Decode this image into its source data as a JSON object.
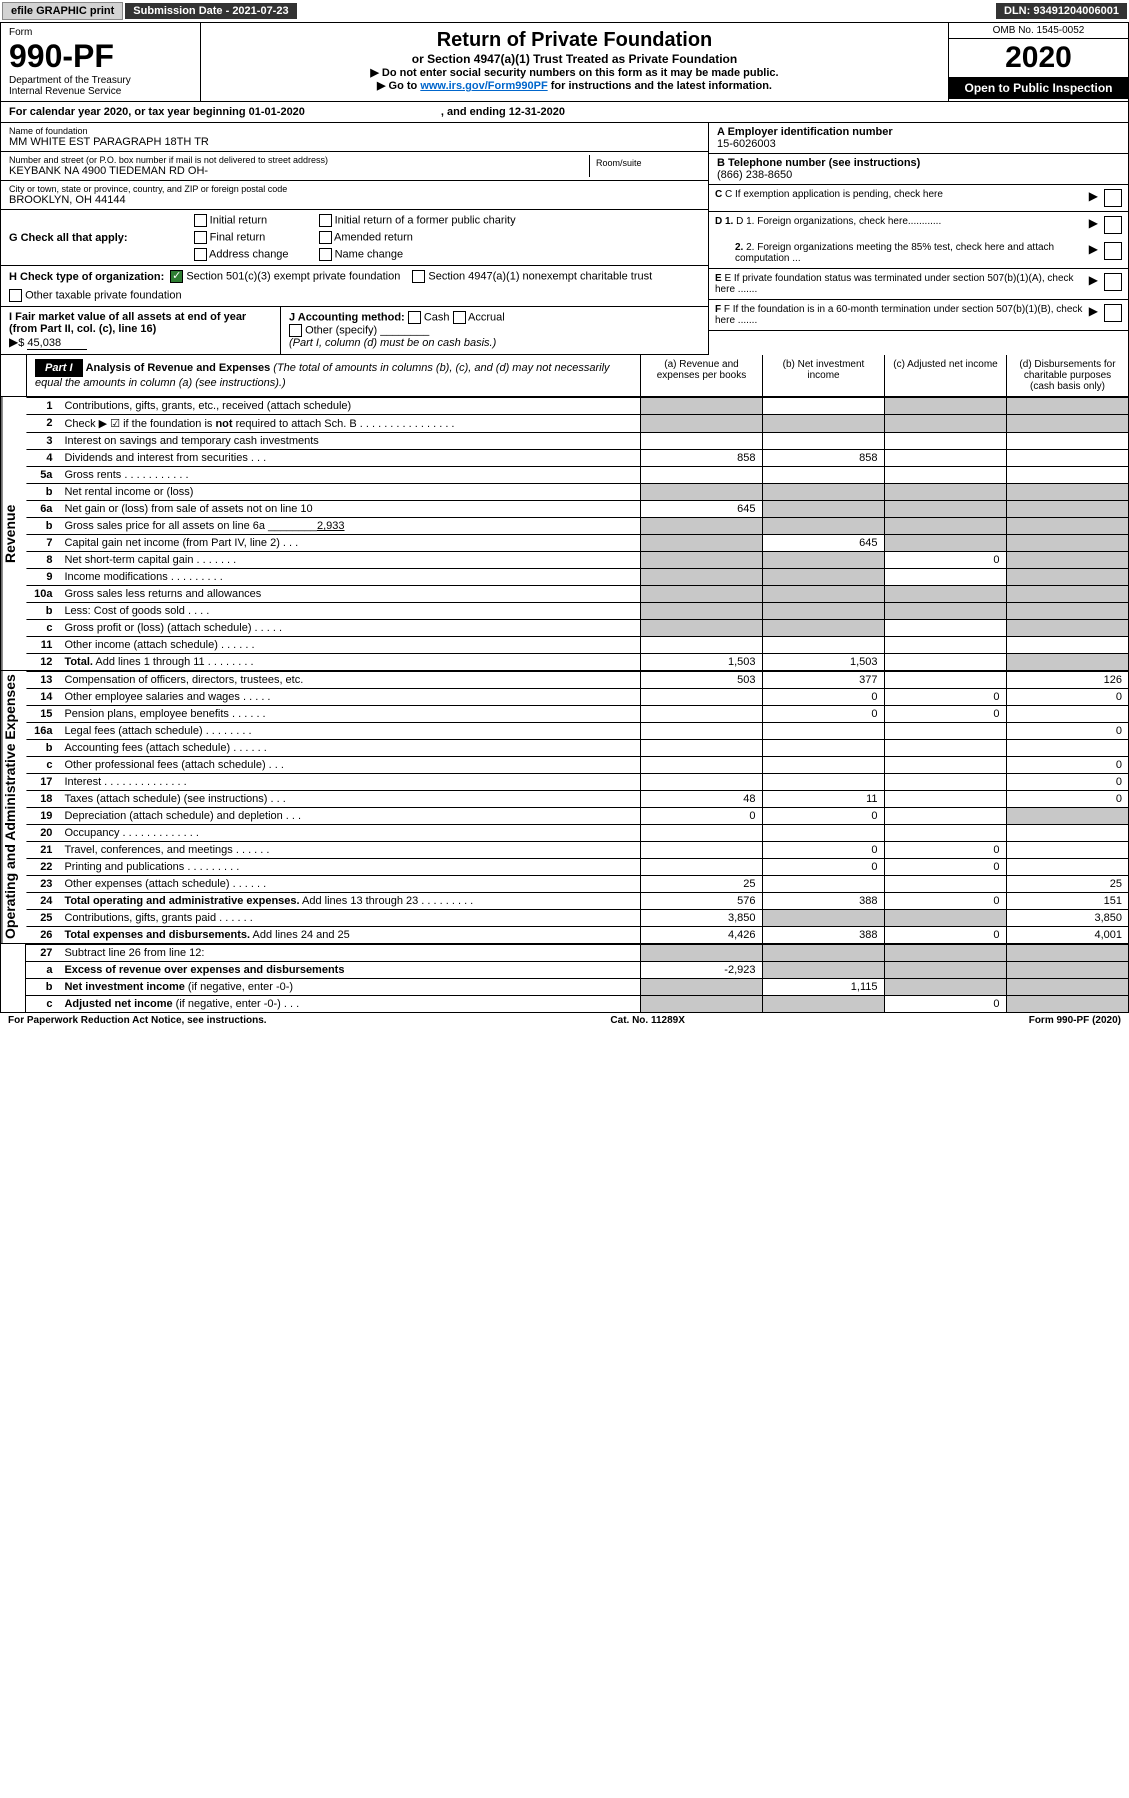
{
  "topbar": {
    "efile": "efile GRAPHIC print",
    "sub_label": "Submission Date - 2021-07-23",
    "dln": "DLN: 93491204006001"
  },
  "header": {
    "form": "Form",
    "num": "990-PF",
    "dept": "Department of the Treasury\nInternal Revenue Service",
    "title": "Return of Private Foundation",
    "subtitle": "or Section 4947(a)(1) Trust Treated as Private Foundation",
    "instr1": "▶ Do not enter social security numbers on this form as it may be made public.",
    "instr2_pre": "▶ Go to ",
    "instr2_link": "www.irs.gov/Form990PF",
    "instr2_post": " for instructions and the latest information.",
    "omb": "OMB No. 1545-0052",
    "year": "2020",
    "open": "Open to Public Inspection"
  },
  "cy": "For calendar year 2020, or tax year beginning 01-01-2020",
  "cy_end": ", and ending 12-31-2020",
  "name": {
    "lbl": "Name of foundation",
    "val": "MM WHITE EST PARAGRAPH 18TH TR"
  },
  "addr": {
    "lbl": "Number and street (or P.O. box number if mail is not delivered to street address)",
    "val": "KEYBANK NA 4900 TIEDEMAN RD OH-",
    "room": "Room/suite"
  },
  "city": {
    "lbl": "City or town, state or province, country, and ZIP or foreign postal code",
    "val": "BROOKLYN, OH  44144"
  },
  "ein": {
    "lbl": "A Employer identification number",
    "val": "15-6026003"
  },
  "tel": {
    "lbl": "B Telephone number (see instructions)",
    "val": "(866) 238-8650"
  },
  "c": "C If exemption application is pending, check here",
  "d1": "D 1. Foreign organizations, check here............",
  "d2": "2. Foreign organizations meeting the 85% test, check here and attach computation ...",
  "e": "E  If private foundation status was terminated under section 507(b)(1)(A), check here .......",
  "f": "F  If the foundation is in a 60-month termination under section 507(b)(1)(B), check here .......",
  "g": {
    "lbl": "G Check all that apply:",
    "opts": [
      "Initial return",
      "Final return",
      "Address change",
      "Initial return of a former public charity",
      "Amended return",
      "Name change"
    ]
  },
  "h": {
    "lbl": "H Check type of organization:",
    "o1": "Section 501(c)(3) exempt private foundation",
    "o2": "Section 4947(a)(1) nonexempt charitable trust",
    "o3": "Other taxable private foundation"
  },
  "i": {
    "lbl": "I Fair market value of all assets at end of year (from Part II, col. (c), line 16)",
    "amt": "45,038"
  },
  "j": {
    "lbl": "J Accounting method:",
    "cash": "Cash",
    "accrual": "Accrual",
    "other": "Other (specify)",
    "note": "(Part I, column (d) must be on cash basis.)"
  },
  "part1": {
    "hdr": "Part I",
    "title": "Analysis of Revenue and Expenses",
    "sub": " (The total of amounts in columns (b), (c), and (d) may not necessarily equal the amounts in column (a) (see instructions).)",
    "ca": "(a)   Revenue and expenses per books",
    "cb": "(b)   Net investment income",
    "cc": "(c)   Adjusted net income",
    "cd": "(d)  Disbursements for charitable purposes (cash basis only)"
  },
  "rev_label": "Revenue",
  "exp_label": "Operating and Administrative Expenses",
  "rows": [
    {
      "n": "1",
      "d": "Contributions, gifts, grants, etc., received (attach schedule)",
      "a": "",
      "b": "",
      "c": "",
      "dd": "",
      "ga": true,
      "gc": true,
      "gd": true
    },
    {
      "n": "2",
      "d": "Check ▶ ☑ if the foundation is <b>not</b> required to attach Sch. B   .   .   .   .   .   .   .   .   .   .   .   .   .   .   .   .",
      "ga": true,
      "gb": true,
      "gc": true,
      "gd": true
    },
    {
      "n": "3",
      "d": "Interest on savings and temporary cash investments"
    },
    {
      "n": "4",
      "d": "Dividends and interest from securities   .   .   .",
      "a": "858",
      "b": "858"
    },
    {
      "n": "5a",
      "d": "Gross rents   .   .   .   .   .   .   .   .   .   .   ."
    },
    {
      "n": "b",
      "d": "Net rental income or (loss)  ",
      "ga": true,
      "gb": true,
      "gc": true,
      "gd": true
    },
    {
      "n": "6a",
      "d": "Net gain or (loss) from sale of assets not on line 10",
      "a": "645",
      "gb": true,
      "gc": true,
      "gd": true
    },
    {
      "n": "b",
      "d": "Gross sales price for all assets on line 6a ________<u>2,933</u>",
      "ga": true,
      "gb": true,
      "gc": true,
      "gd": true
    },
    {
      "n": "7",
      "d": "Capital gain net income (from Part IV, line 2)   .   .   .",
      "b": "645",
      "ga": true,
      "gc": true,
      "gd": true
    },
    {
      "n": "8",
      "d": "Net short-term capital gain   .   .   .   .   .   .   .",
      "c": "0",
      "ga": true,
      "gb": true,
      "gd": true
    },
    {
      "n": "9",
      "d": "Income modifications  .   .   .   .   .   .   .   .   .",
      "ga": true,
      "gb": true,
      "gd": true
    },
    {
      "n": "10a",
      "d": "Gross sales less returns and allowances",
      "ga": true,
      "gb": true,
      "gc": true,
      "gd": true
    },
    {
      "n": "b",
      "d": "Less: Cost of goods sold   .   .   .   .",
      "ga": true,
      "gb": true,
      "gc": true,
      "gd": true
    },
    {
      "n": "c",
      "d": "Gross profit or (loss) (attach schedule)   .   .   .   .   .",
      "ga": true,
      "gb": true,
      "gd": true
    },
    {
      "n": "11",
      "d": "Other income (attach schedule)   .   .   .   .   .   ."
    },
    {
      "n": "12",
      "d": "<b>Total.</b> Add lines 1 through 11   .   .   .   .   .   .   .   .",
      "a": "1,503",
      "b": "1,503",
      "gd": true
    }
  ],
  "exprows": [
    {
      "n": "13",
      "d": "Compensation of officers, directors, trustees, etc.",
      "a": "503",
      "b": "377",
      "dd": "126"
    },
    {
      "n": "14",
      "d": "Other employee salaries and wages   .   .   .   .   .",
      "b": "0",
      "c": "0",
      "dd": "0"
    },
    {
      "n": "15",
      "d": "Pension plans, employee benefits  .   .   .   .   .   .",
      "b": "0",
      "c": "0"
    },
    {
      "n": "16a",
      "d": "Legal fees (attach schedule)  .   .   .   .   .   .   .   .",
      "dd": "0"
    },
    {
      "n": "b",
      "d": "Accounting fees (attach schedule)  .   .   .   .   .   ."
    },
    {
      "n": "c",
      "d": "Other professional fees (attach schedule)   .   .   .",
      "dd": "0"
    },
    {
      "n": "17",
      "d": "Interest  .   .   .   .   .   .   .   .   .   .   .   .   .   .",
      "dd": "0"
    },
    {
      "n": "18",
      "d": "Taxes (attach schedule) (see instructions)   .   .   .",
      "a": "48",
      "b": "11",
      "dd": "0"
    },
    {
      "n": "19",
      "d": "Depreciation (attach schedule) and depletion   .   .   .",
      "a": "0",
      "b": "0",
      "gd": true
    },
    {
      "n": "20",
      "d": "Occupancy  .   .   .   .   .   .   .   .   .   .   .   .   ."
    },
    {
      "n": "21",
      "d": "Travel, conferences, and meetings  .   .   .   .   .   .",
      "b": "0",
      "c": "0"
    },
    {
      "n": "22",
      "d": "Printing and publications  .   .   .   .   .   .   .   .   .",
      "b": "0",
      "c": "0"
    },
    {
      "n": "23",
      "d": "Other expenses (attach schedule)  .   .   .   .   .   .",
      "a": "25",
      "dd": "25"
    },
    {
      "n": "24",
      "d": "<b>Total operating and administrative expenses.</b> Add lines 13 through 23   .   .   .   .   .   .   .   .   .",
      "a": "576",
      "b": "388",
      "c": "0",
      "dd": "151"
    },
    {
      "n": "25",
      "d": "Contributions, gifts, grants paid   .   .   .   .   .   .",
      "a": "3,850",
      "dd": "3,850",
      "gb": true,
      "gc": true
    },
    {
      "n": "26",
      "d": "<b>Total expenses and disbursements.</b> Add lines 24 and 25",
      "a": "4,426",
      "b": "388",
      "c": "0",
      "dd": "4,001"
    }
  ],
  "line27": [
    {
      "n": "27",
      "d": "Subtract line 26 from line 12:",
      "ga": true,
      "gb": true,
      "gc": true,
      "gd": true
    },
    {
      "n": "a",
      "d": "<b>Excess of revenue over expenses and disbursements</b>",
      "a": "-2,923",
      "gb": true,
      "gc": true,
      "gd": true
    },
    {
      "n": "b",
      "d": "<b>Net investment income</b> (if negative, enter -0-)",
      "b": "1,115",
      "ga": true,
      "gc": true,
      "gd": true
    },
    {
      "n": "c",
      "d": "<b>Adjusted net income</b> (if negative, enter -0-)   .   .   .",
      "c": "0",
      "ga": true,
      "gb": true,
      "gd": true
    }
  ],
  "foot": {
    "l": "For Paperwork Reduction Act Notice, see instructions.",
    "m": "Cat. No. 11289X",
    "r": "Form 990-PF (2020)"
  }
}
